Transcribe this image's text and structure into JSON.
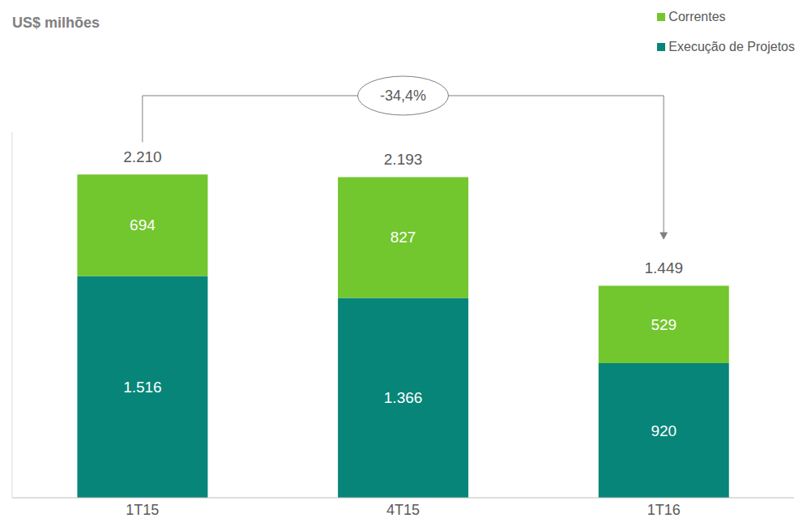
{
  "chart_data": {
    "type": "bar",
    "stacked": true,
    "ylabel": "US$ milhões",
    "categories": [
      "1T15",
      "4T15",
      "1T16"
    ],
    "series": [
      {
        "name": "Execução de Projetos",
        "color": "#078579",
        "values": [
          1516,
          1366,
          920
        ],
        "value_labels": [
          "1.516",
          "1.366",
          "920"
        ]
      },
      {
        "name": "Correntes",
        "color": "#72c62e",
        "values": [
          694,
          827,
          529
        ]
      }
    ],
    "totals": [
      2210,
      2193,
      1449
    ],
    "total_labels": [
      "2.210",
      "2.193",
      "1.449"
    ],
    "annotation": "-34,4%",
    "ylim": [
      0,
      2500
    ],
    "yticks": [],
    "tick_labels": "x",
    "data_labels": true,
    "legend": "top right"
  }
}
